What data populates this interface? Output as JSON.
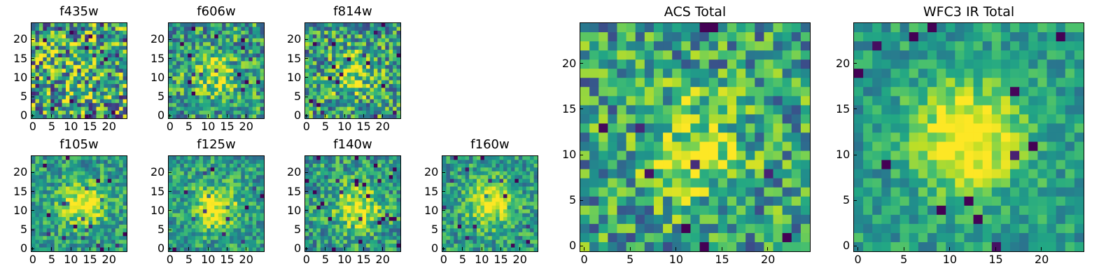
{
  "panels": [
    {
      "id": "f435w",
      "title": "f435w",
      "size": "small",
      "xticks": [
        0,
        5,
        10,
        15,
        20
      ],
      "yticks": [
        0,
        5,
        10,
        15,
        20
      ],
      "pattern": {
        "center": [
          12,
          12
        ],
        "sigma": 6,
        "peak": 0.1,
        "noise": 0.8,
        "seed": 11
      }
    },
    {
      "id": "f606w",
      "title": "f606w",
      "size": "small",
      "xticks": [
        0,
        5,
        10,
        15,
        20
      ],
      "yticks": [
        0,
        5,
        10,
        15,
        20
      ],
      "pattern": {
        "center": [
          11,
          11
        ],
        "sigma": 4,
        "peak": 0.45,
        "noise": 0.55,
        "seed": 23
      }
    },
    {
      "id": "f814w",
      "title": "f814w",
      "size": "small",
      "xticks": [
        0,
        5,
        10,
        15,
        20
      ],
      "yticks": [
        0,
        5,
        10,
        15,
        20
      ],
      "pattern": {
        "center": [
          12,
          11
        ],
        "sigma": 4,
        "peak": 0.4,
        "noise": 0.6,
        "seed": 37
      }
    },
    {
      "id": "f105w",
      "title": "f105w",
      "size": "small",
      "xticks": [
        0,
        5,
        10,
        15,
        20
      ],
      "yticks": [
        0,
        5,
        10,
        15,
        20
      ],
      "pattern": {
        "center": [
          13,
          12
        ],
        "sigma": 4,
        "peak": 0.6,
        "noise": 0.4,
        "seed": 41
      }
    },
    {
      "id": "f125w",
      "title": "f125w",
      "size": "small",
      "xticks": [
        0,
        5,
        10,
        15,
        20
      ],
      "yticks": [
        0,
        5,
        10,
        15,
        20
      ],
      "pattern": {
        "center": [
          12,
          11
        ],
        "sigma": 4,
        "peak": 0.6,
        "noise": 0.4,
        "seed": 53
      }
    },
    {
      "id": "f140w",
      "title": "f140w",
      "size": "small",
      "xticks": [
        0,
        5,
        10,
        15,
        20
      ],
      "yticks": [
        0,
        5,
        10,
        15,
        20
      ],
      "pattern": {
        "center": [
          13,
          11
        ],
        "sigma": 4,
        "peak": 0.55,
        "noise": 0.45,
        "seed": 67
      }
    },
    {
      "id": "f160w",
      "title": "f160w",
      "size": "small",
      "xticks": [
        0,
        5,
        10,
        15,
        20
      ],
      "yticks": [
        0,
        5,
        10,
        15,
        20
      ],
      "pattern": {
        "center": [
          12,
          12
        ],
        "sigma": 4,
        "peak": 0.6,
        "noise": 0.4,
        "seed": 79
      }
    },
    {
      "id": "acs_total",
      "title": "ACS Total",
      "size": "large",
      "xticks": [
        0,
        5,
        10,
        15,
        20
      ],
      "yticks": [
        0,
        5,
        10,
        15,
        20
      ],
      "pattern": {
        "center": [
          12,
          11
        ],
        "sigma": 4,
        "peak": 0.45,
        "noise": 0.55,
        "seed": 97
      }
    },
    {
      "id": "wfc3_ir_total",
      "title": "WFC3 IR Total",
      "size": "large",
      "xticks": [
        0,
        5,
        10,
        15,
        20
      ],
      "yticks": [
        0,
        5,
        10,
        15,
        20
      ],
      "pattern": {
        "center": [
          12,
          12
        ],
        "sigma": 4,
        "peak": 0.7,
        "noise": 0.3,
        "seed": 113
      }
    }
  ],
  "chart_data": [
    {
      "type": "heatmap",
      "title": "f435w",
      "x_range": [
        0,
        24
      ],
      "y_range": [
        0,
        24
      ],
      "grid_size": [
        25,
        25
      ],
      "colormap": "viridis"
    },
    {
      "type": "heatmap",
      "title": "f606w",
      "x_range": [
        0,
        24
      ],
      "y_range": [
        0,
        24
      ],
      "grid_size": [
        25,
        25
      ],
      "colormap": "viridis"
    },
    {
      "type": "heatmap",
      "title": "f814w",
      "x_range": [
        0,
        24
      ],
      "y_range": [
        0,
        24
      ],
      "grid_size": [
        25,
        25
      ],
      "colormap": "viridis"
    },
    {
      "type": "heatmap",
      "title": "f105w",
      "x_range": [
        0,
        24
      ],
      "y_range": [
        0,
        24
      ],
      "grid_size": [
        25,
        25
      ],
      "colormap": "viridis"
    },
    {
      "type": "heatmap",
      "title": "f125w",
      "x_range": [
        0,
        24
      ],
      "y_range": [
        0,
        24
      ],
      "grid_size": [
        25,
        25
      ],
      "colormap": "viridis"
    },
    {
      "type": "heatmap",
      "title": "f140w",
      "x_range": [
        0,
        24
      ],
      "y_range": [
        0,
        24
      ],
      "grid_size": [
        25,
        25
      ],
      "colormap": "viridis"
    },
    {
      "type": "heatmap",
      "title": "f160w",
      "x_range": [
        0,
        24
      ],
      "y_range": [
        0,
        24
      ],
      "grid_size": [
        25,
        25
      ],
      "colormap": "viridis"
    },
    {
      "type": "heatmap",
      "title": "ACS Total",
      "x_range": [
        0,
        24
      ],
      "y_range": [
        0,
        24
      ],
      "grid_size": [
        25,
        25
      ],
      "colormap": "viridis"
    },
    {
      "type": "heatmap",
      "title": "WFC3 IR Total",
      "x_range": [
        0,
        24
      ],
      "y_range": [
        0,
        24
      ],
      "grid_size": [
        25,
        25
      ],
      "colormap": "viridis"
    }
  ]
}
